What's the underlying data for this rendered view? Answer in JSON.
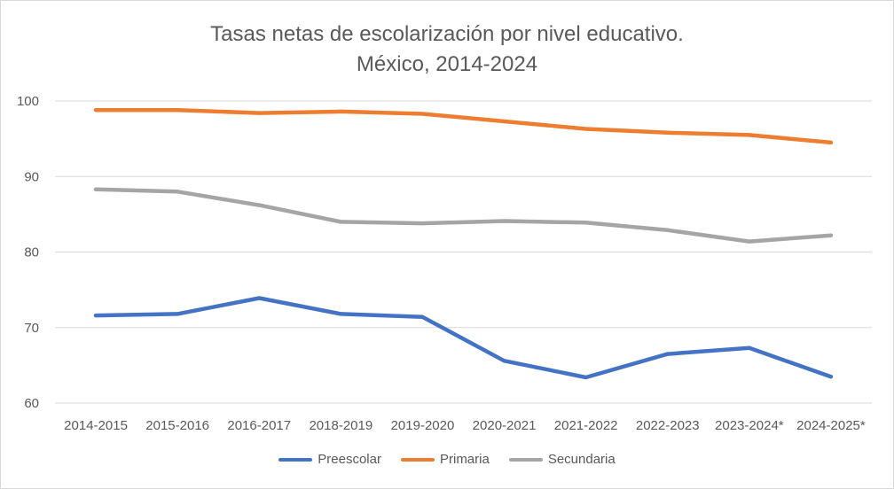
{
  "chart_data": {
    "type": "line",
    "title_line1": "Tasas netas de escolarización por nivel educativo.",
    "title_line2": "México, 2014-2024",
    "categories": [
      "2014-2015",
      "2015-2016",
      "2016-2017",
      "2018-2019",
      "2019-2020",
      "2020-2021",
      "2021-2022",
      "2022-2023",
      "2023-2024*",
      "2024-2025*"
    ],
    "ylim": [
      60,
      100
    ],
    "yticks": [
      "60",
      "70",
      "80",
      "90",
      "100"
    ],
    "grid": true,
    "legend_position": "bottom",
    "series": [
      {
        "name": "Preescolar",
        "color": "#4472C4",
        "values": [
          71.6,
          71.8,
          73.9,
          71.8,
          71.4,
          65.6,
          63.4,
          66.5,
          67.3,
          63.5
        ]
      },
      {
        "name": "Primaria",
        "color": "#ED7D31",
        "values": [
          98.8,
          98.8,
          98.4,
          98.6,
          98.3,
          97.3,
          96.3,
          95.8,
          95.5,
          94.5
        ]
      },
      {
        "name": "Secundaria",
        "color": "#A5A5A5",
        "values": [
          88.3,
          88.0,
          86.2,
          84.0,
          83.8,
          84.1,
          83.9,
          82.9,
          81.4,
          82.2
        ]
      }
    ]
  }
}
